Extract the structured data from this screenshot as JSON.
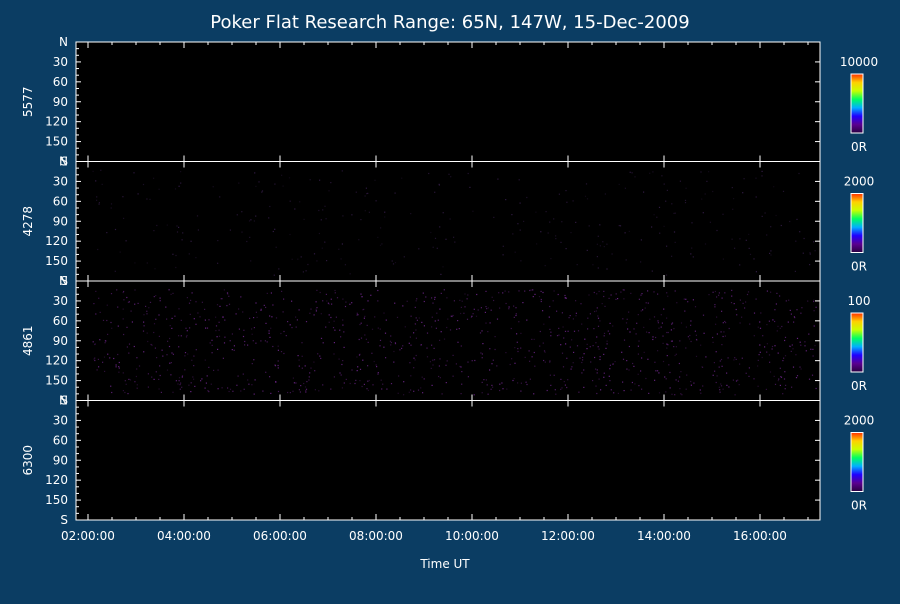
{
  "chart_data": {
    "type": "heatmap",
    "title": "Poker Flat Research Range: 65N, 147W, 15-Dec-2009",
    "xlabel": "Time UT",
    "x_ticks": [
      "02:00:00",
      "04:00:00",
      "06:00:00",
      "08:00:00",
      "10:00:00",
      "12:00:00",
      "14:00:00",
      "16:00:00"
    ],
    "x_tick_hours": [
      2,
      4,
      6,
      8,
      10,
      12,
      14,
      16
    ],
    "x_range_hours": [
      1.75,
      17.25
    ],
    "y_ticks": [
      "N",
      "30",
      "60",
      "90",
      "120",
      "150",
      "S"
    ],
    "y_tick_values": [
      0,
      30,
      60,
      90,
      120,
      150,
      180
    ],
    "y_range": [
      0,
      180
    ],
    "panels": [
      {
        "wavelength": "5577",
        "colorbar_max": "10000",
        "colorbar_min": "0R",
        "noise_level": 0.0
      },
      {
        "wavelength": "4278",
        "colorbar_max": "2000",
        "colorbar_min": "0R",
        "noise_level": 0.12
      },
      {
        "wavelength": "4861",
        "colorbar_max": "100",
        "colorbar_min": "0R",
        "noise_level": 0.45
      },
      {
        "wavelength": "6300",
        "colorbar_max": "2000",
        "colorbar_min": "0R",
        "noise_level": 0.0
      }
    ],
    "colormap": [
      "#2a0040",
      "#5a0090",
      "#2000ff",
      "#00b0ff",
      "#00ff60",
      "#c8ff00",
      "#ffd000",
      "#ff3000"
    ],
    "background": "#0b3d63"
  }
}
